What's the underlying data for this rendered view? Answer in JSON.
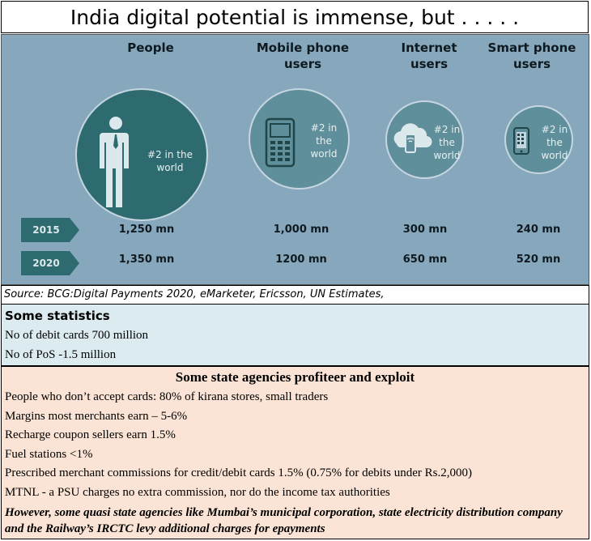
{
  "title": "India digital potential is immense, but . . . . .",
  "infographic": {
    "columns": [
      {
        "label": "People",
        "rank": "#2 in the world",
        "icon": "person-icon"
      },
      {
        "label": "Mobile phone users",
        "rank": "#2 in the world",
        "icon": "mobile-phone-icon"
      },
      {
        "label": "Internet users",
        "rank": "#2 in the world",
        "icon": "cloud-wifi-icon"
      },
      {
        "label": "Smart phone users",
        "rank": "#2 in the world",
        "icon": "smartphone-icon"
      }
    ],
    "rows": [
      {
        "year": "2015",
        "values": [
          "1,250 mn",
          "1,000 mn",
          "300 mn",
          "240 mn"
        ]
      },
      {
        "year": "2020",
        "values": [
          "1,350 mn",
          "1200 mn",
          "650 mn",
          "520 mn"
        ]
      }
    ],
    "colors": {
      "background": "#87a8bc",
      "circle_dark": "#2e6b70",
      "circle_mid": "#5f8f9b",
      "year_tag": "#2e6b70"
    }
  },
  "source": "Source: BCG:Digital Payments 2020, eMarketer, Ericsson, UN Estimates,",
  "stats": {
    "heading": "Some statistics",
    "lines": [
      "No of debit cards 700 million",
      "No of PoS -1.5 million"
    ]
  },
  "agencies": {
    "heading": "Some state agencies profiteer and exploit",
    "lines": [
      "People who don’t accept cards: 80% of kirana stores, small traders",
      "Margins most merchants earn – 5-6%",
      "Recharge coupon sellers earn 1.5%",
      "Fuel stations <1%",
      "Prescribed merchant commissions for credit/debit cards 1.5% (0.75% for debits under Rs.2,000)",
      "MTNL - a PSU charges no extra commission, nor do the income tax authorities"
    ],
    "emphasis": "However, some quasi state agencies like Mumbai’s municipal corporation, state electricity distribution company and the Railway’s IRCTC levy additional charges for epayments"
  }
}
